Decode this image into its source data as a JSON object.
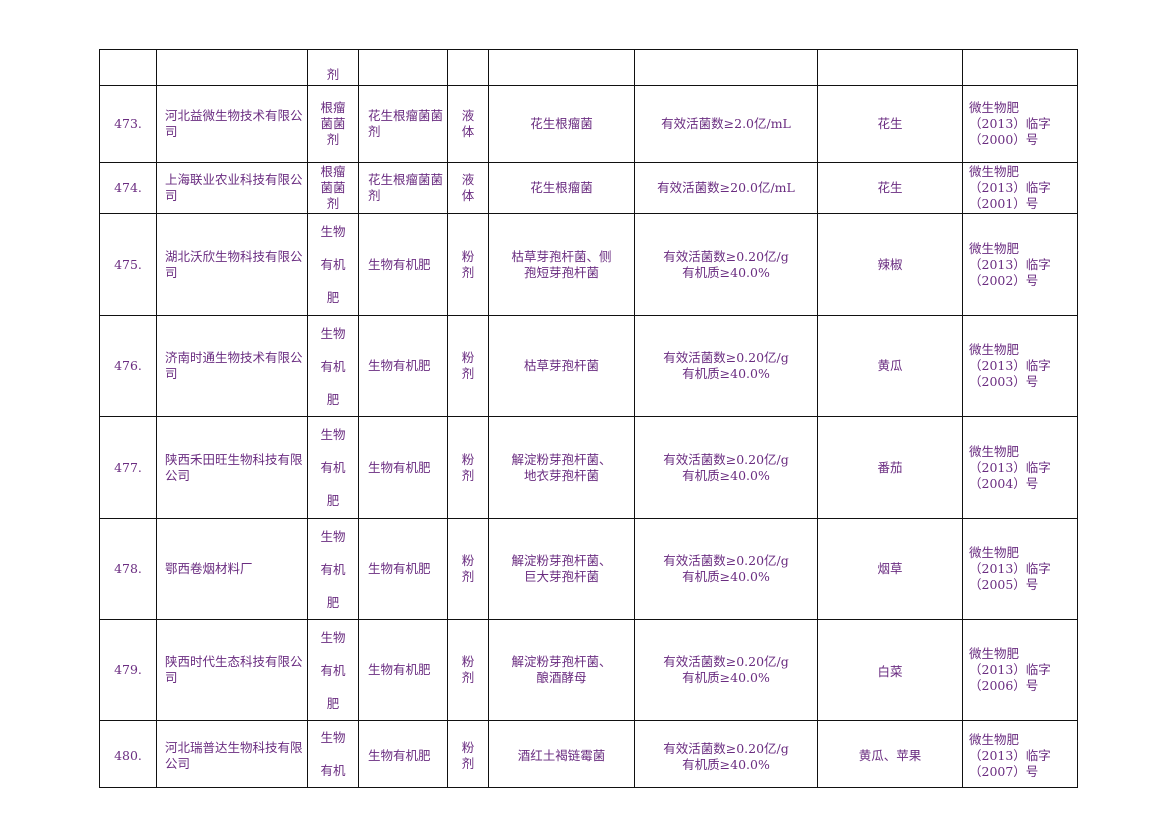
{
  "partial_row": {
    "type_tail": "剂"
  },
  "rows": [
    {
      "index": "473.",
      "company": "河北益微生物技术有限公司",
      "type": "根瘤菌菌剂",
      "product": "花生根瘤菌菌剂",
      "form": "液体",
      "strain": "花生根瘤菌",
      "tech": [
        "有效活菌数≥2.0亿/mL"
      ],
      "crop": "花生",
      "reg": [
        "微生物肥",
        "（2013）临字",
        "（2000）号"
      ]
    },
    {
      "index": "474.",
      "company": "上海联业农业科技有限公司",
      "type": "根瘤菌菌剂",
      "product": "花生根瘤菌菌剂",
      "form": "液体",
      "strain": "花生根瘤菌",
      "tech": [
        "有效活菌数≥20.0亿/mL"
      ],
      "crop": "花生",
      "reg": [
        "微生物肥",
        "（2013）临字",
        "（2001）号"
      ]
    },
    {
      "index": "475.",
      "company": "湖北沃欣生物科技有限公司",
      "type": "生物有机肥",
      "product": "生物有机肥",
      "form": "粉剂",
      "strain": [
        "枯草芽孢杆菌、侧",
        "孢短芽孢杆菌"
      ],
      "tech": [
        "有效活菌数≥0.20亿/g",
        "有机质≥40.0%"
      ],
      "crop": "辣椒",
      "reg": [
        "微生物肥",
        "（2013）临字",
        "（2002）号"
      ]
    },
    {
      "index": "476.",
      "company": "济南时通生物技术有限公司",
      "type": "生物有机肥",
      "product": "生物有机肥",
      "form": "粉剂",
      "strain": [
        "枯草芽孢杆菌"
      ],
      "tech": [
        "有效活菌数≥0.20亿/g",
        "有机质≥40.0%"
      ],
      "crop": "黄瓜",
      "reg": [
        "微生物肥",
        "（2013）临字",
        "（2003）号"
      ]
    },
    {
      "index": "477.",
      "company": "陕西禾田旺生物科技有限公司",
      "type": "生物有机肥",
      "product": "生物有机肥",
      "form": "粉剂",
      "strain": [
        "解淀粉芽孢杆菌、",
        "地衣芽孢杆菌"
      ],
      "tech": [
        "有效活菌数≥0.20亿/g",
        "有机质≥40.0%"
      ],
      "crop": "番茄",
      "reg": [
        "微生物肥",
        "（2013）临字",
        "（2004）号"
      ]
    },
    {
      "index": "478.",
      "company": "鄂西卷烟材料厂",
      "type": "生物有机肥",
      "product": "生物有机肥",
      "form": "粉剂",
      "strain": [
        "解淀粉芽孢杆菌、",
        "巨大芽孢杆菌"
      ],
      "tech": [
        "有效活菌数≥0.20亿/g",
        "有机质≥40.0%"
      ],
      "crop": "烟草",
      "reg": [
        "微生物肥",
        "（2013）临字",
        "（2005）号"
      ]
    },
    {
      "index": "479.",
      "company": "陕西时代生态科技有限公司",
      "type": "生物有机肥",
      "product": "生物有机肥",
      "form": "粉剂",
      "strain": [
        "解淀粉芽孢杆菌、",
        "酿酒酵母"
      ],
      "tech": [
        "有效活菌数≥0.20亿/g",
        "有机质≥40.0%"
      ],
      "crop": "白菜",
      "reg": [
        "微生物肥",
        "（2013）临字",
        "（2006）号"
      ]
    },
    {
      "index": "480.",
      "company": "河北瑞普达生物科技有限公司",
      "type": "生物有机",
      "product": "生物有机肥",
      "form": "粉剂",
      "strain": [
        "酒红土褐链霉菌"
      ],
      "tech": [
        "有效活菌数≥0.20亿/g",
        "有机质≥40.0%"
      ],
      "crop": "黄瓜、苹果",
      "reg": [
        "微生物肥",
        "（2013）临字",
        "（2007）号"
      ]
    }
  ]
}
